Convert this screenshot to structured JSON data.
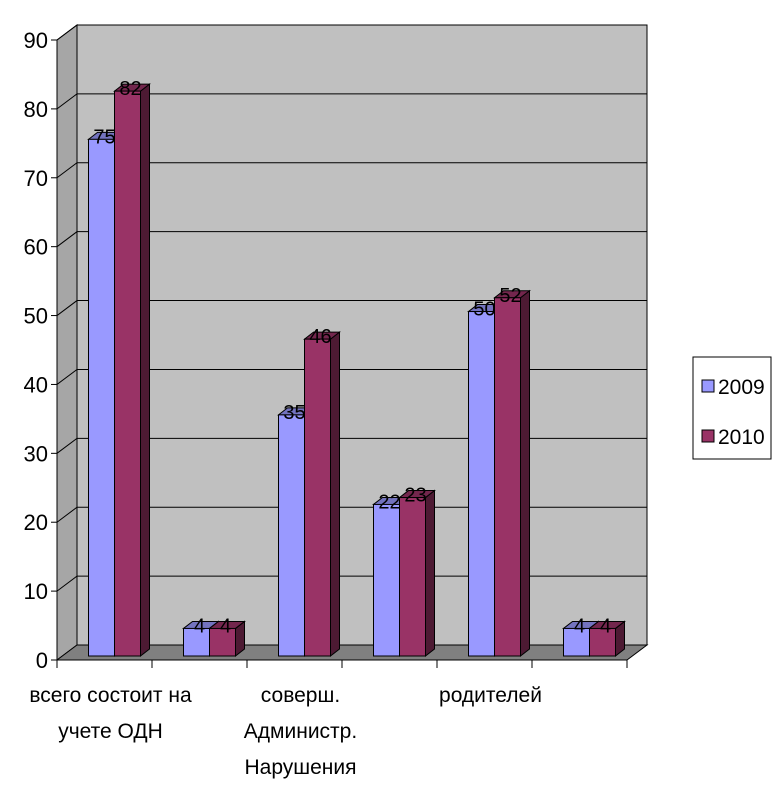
{
  "chart_data": {
    "type": "bar",
    "title": "",
    "xlabel": "",
    "ylabel": "",
    "ylim": [
      0,
      90
    ],
    "yticks": [
      "0",
      "10",
      "20",
      "30",
      "40",
      "50",
      "60",
      "70",
      "80",
      "90"
    ],
    "categories": [
      "всего состоит на учете ОДН",
      "",
      "соверш. Администр. Нарушения",
      "",
      "родителей",
      ""
    ],
    "category_label_lines": [
      [
        "всего состоит на",
        "учете ОДН"
      ],
      [],
      [
        "соверш.",
        "Администр.",
        "Нарушения"
      ],
      [],
      [
        "родителей"
      ],
      []
    ],
    "series": [
      {
        "name": "2009",
        "values": [
          75,
          4,
          35,
          22,
          50,
          4
        ],
        "color": "#9999FF"
      },
      {
        "name": "2010",
        "values": [
          82,
          4,
          46,
          23,
          52,
          4
        ],
        "color": "#993366"
      }
    ],
    "grid": true,
    "legend_position": "right",
    "plot_background": "#C0C0C0",
    "floor_color": "#808080"
  }
}
